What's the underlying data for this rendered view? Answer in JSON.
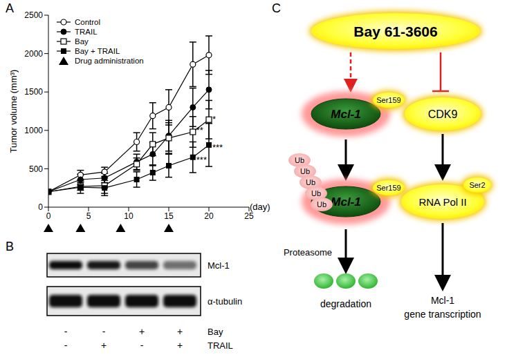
{
  "panel_labels": [
    "A",
    "B",
    "C"
  ],
  "chart_data": {
    "type": "line",
    "xlabel": "(day)",
    "ylabel": "Tumor volume (mm³)",
    "x": [
      0,
      4,
      7,
      11,
      13,
      15,
      18,
      20
    ],
    "xlim": [
      0,
      25
    ],
    "xticks": [
      0,
      5,
      10,
      15,
      20,
      25
    ],
    "ylim": [
      0,
      2500
    ],
    "yticks": [
      0,
      500,
      1000,
      1500,
      2000,
      2500
    ],
    "grid": false,
    "legend": "upper left",
    "series": [
      {
        "name": "Control",
        "color": "#000000",
        "marker": "circle_open",
        "values": [
          200,
          420,
          460,
          850,
          1190,
          1300,
          1860,
          1980
        ],
        "errors": [
          0,
          60,
          60,
          120,
          170,
          230,
          290,
          250
        ]
      },
      {
        "name": "TRAIL",
        "color": "#000000",
        "marker": "circle",
        "values": [
          200,
          360,
          380,
          590,
          690,
          930,
          1300,
          1530
        ],
        "errors": [
          0,
          70,
          60,
          100,
          150,
          200,
          250,
          250
        ]
      },
      {
        "name": "Bay",
        "color": "#000000",
        "marker": "square_open",
        "values": [
          200,
          270,
          280,
          560,
          820,
          900,
          980,
          1140
        ],
        "errors": [
          0,
          50,
          100,
          80,
          150,
          200,
          200,
          250
        ]
      },
      {
        "name": "Bay + TRAIL",
        "color": "#000000",
        "marker": "square",
        "values": [
          200,
          260,
          250,
          360,
          450,
          540,
          650,
          810
        ],
        "errors": [
          0,
          80,
          100,
          100,
          100,
          150,
          200,
          280
        ]
      }
    ],
    "drug_administration": {
      "label": "Drug administration",
      "marker": "triangle",
      "x": [
        0,
        4,
        9,
        15
      ]
    },
    "annotations": [
      {
        "text": "**",
        "x": 18,
        "y": 1000
      },
      {
        "text": "***",
        "x": 18,
        "y": 620
      },
      {
        "text": "*",
        "x": 20,
        "y": 1150
      },
      {
        "text": "***",
        "x": 20,
        "y": 780
      }
    ]
  },
  "blot": {
    "bands": [
      {
        "label": "Mcl-1",
        "relative_intensity": [
          1,
          0.95,
          0.75,
          0.55
        ]
      },
      {
        "label": "α-tubulin",
        "relative_intensity": [
          1,
          1,
          1,
          1
        ]
      }
    ],
    "conditions": [
      {
        "label": "Bay",
        "values": [
          "-",
          "-",
          "+",
          "+"
        ]
      },
      {
        "label": "TRAIL",
        "values": [
          "-",
          "+",
          "-",
          "+"
        ]
      }
    ]
  },
  "diagram": {
    "drug": "Bay 61-3606",
    "left": {
      "protein": "Mcl-1",
      "site": "Ser159",
      "ubiquitin": [
        "Ub",
        "Ub",
        "Ub",
        "Ub",
        "Ub"
      ],
      "step": "Proteasome",
      "outcome": "degradation"
    },
    "right": {
      "kinase": "CDK9",
      "target": "RNA Pol II",
      "site": "Ser2",
      "outcome": [
        "Mcl-1",
        "gene transcription"
      ]
    }
  }
}
